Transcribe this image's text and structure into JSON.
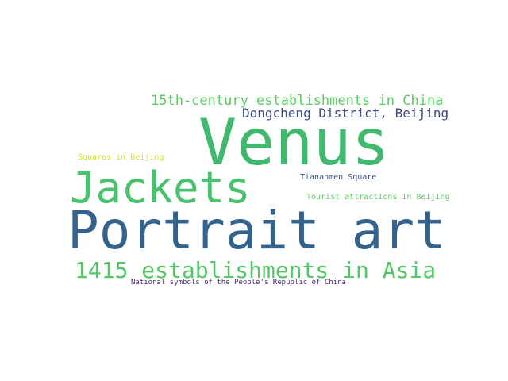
{
  "word_cloud": {
    "words": [
      {
        "text": "Venus",
        "color": "#40b96e"
      },
      {
        "text": "Portrait art",
        "color": "#33638d"
      },
      {
        "text": "Jackets",
        "color": "#4ac16d"
      },
      {
        "text": "1415 establishments in Asia",
        "color": "#55c667"
      },
      {
        "text": "15th-century establishments in China",
        "color": "#5ec962"
      },
      {
        "text": "Dongcheng District, Beijing",
        "color": "#3e4a89"
      },
      {
        "text": "Tiananmen Square",
        "color": "#3b528b"
      },
      {
        "text": "Tourist attractions in Beijing",
        "color": "#5ec962"
      },
      {
        "text": "Squares in Beijing",
        "color": "#d8e219"
      },
      {
        "text": "National symbols of the People's Republic of China",
        "color": "#482475"
      }
    ]
  }
}
